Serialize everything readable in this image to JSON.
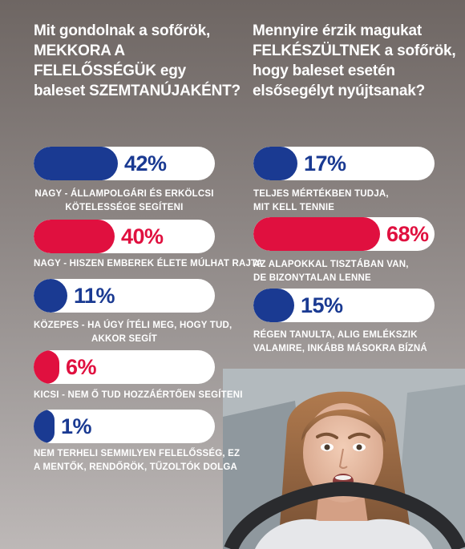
{
  "left": {
    "title_lines": [
      "Mit gondolnak a sofőrök,",
      "MEKKORA A",
      "FELELŐSSÉGÜK egy",
      "baleset SZEMTANÚJAKÉNT?"
    ],
    "items": [
      {
        "value": 42,
        "value_label": "42%",
        "color": "#1a3a92",
        "label_lines": [
          "NAGY - ÁLLAMPOLGÁRI ÉS ERKÖLCSI",
          "KÖTELESSÉGE SEGÍTENI"
        ]
      },
      {
        "value": 40,
        "value_label": "40%",
        "color": "#e0103f",
        "label_lines": [
          "NAGY - HISZEN EMBEREK ÉLETE MÚLHAT RAJTA"
        ]
      },
      {
        "value": 11,
        "value_label": "11%",
        "color": "#1a3a92",
        "label_lines": [
          "KÖZEPES - HA ÚGY ÍTÉLI MEG, HOGY TUD,",
          "AKKOR SEGÍT"
        ]
      },
      {
        "value": 6,
        "value_label": "6%",
        "color": "#e0103f",
        "label_lines": [
          "KICSI - NEM Ő TUD HOZZÁÉRTŐEN SEGÍTENI"
        ]
      },
      {
        "value": 1,
        "value_label": "1%",
        "color": "#1a3a92",
        "label_lines": [
          "NEM TERHELI SEMMILYEN FELELŐSSÉG, EZ",
          "A MENTŐK, RENDŐRÖK, TŰZOLTÓK DOLGA"
        ]
      }
    ]
  },
  "right": {
    "title_lines": [
      "Mennyire érzik magukat",
      "FELKÉSZÜLTNEK a sofőrök,",
      "hogy baleset esetén",
      "elsősegélyt nyújtsanak?"
    ],
    "items": [
      {
        "value": 17,
        "value_label": "17%",
        "color": "#1a3a92",
        "label_lines": [
          "TELJES MÉRTÉKBEN TUDJA,",
          "MIT KELL TENNIE"
        ]
      },
      {
        "value": 68,
        "value_label": "68%",
        "color": "#e0103f",
        "label_lines": [
          "AZ ALAPOKKAL TISZTÁBAN VAN,",
          "DE BIZONYTALAN LENNE"
        ]
      },
      {
        "value": 15,
        "value_label": "15%",
        "color": "#1a3a92",
        "label_lines": [
          "RÉGEN TANULTA, ALIG EMLÉKSZIK",
          "VALAMIRE, INKÁBB MÁSOKRA BÍZNÁ"
        ]
      }
    ]
  },
  "chart_data": [
    {
      "type": "bar",
      "title": "Mit gondolnak a sofőrök, MEKKORA A FELELŐSSÉGÜK egy baleset SZEMTANÚJAKÉNT?",
      "categories": [
        "NAGY - ÁLLAMPOLGÁRI ÉS ERKÖLCSI KÖTELESSÉGE SEGÍTENI",
        "NAGY - HISZEN EMBEREK ÉLETE MÚLHAT RAJTA",
        "KÖZEPES - HA ÚGY ÍTÉLI MEG, HOGY TUD, AKKOR SEGÍT",
        "KICSI - NEM Ő TUD HOZZÁÉRTŐEN SEGÍTENI",
        "NEM TERHELI SEMMILYEN FELELŐSSÉG, EZ A MENTŐK, RENDŐRÖK, TŰZOLTÓK DOLGA"
      ],
      "values": [
        42,
        40,
        11,
        6,
        1
      ],
      "unit": "%",
      "ylim": [
        0,
        100
      ],
      "grid": false
    },
    {
      "type": "bar",
      "title": "Mennyire érzik magukat FELKÉSZÜLTNEK a sofőrök, hogy baleset esetén elsősegélyt nyújtsanak?",
      "categories": [
        "TELJES MÉRTÉKBEN TUDJA, MIT KELL TENNIE",
        "AZ ALAPOKKAL TISZTÁBAN VAN, DE BIZONYTALAN LENNE",
        "RÉGEN TANULTA, ALIG EMLÉKSZIK VALAMIRE, INKÁBB MÁSOKRA BÍZNÁ"
      ],
      "values": [
        17,
        68,
        15
      ],
      "unit": "%",
      "ylim": [
        0,
        100
      ],
      "grid": false
    }
  ]
}
